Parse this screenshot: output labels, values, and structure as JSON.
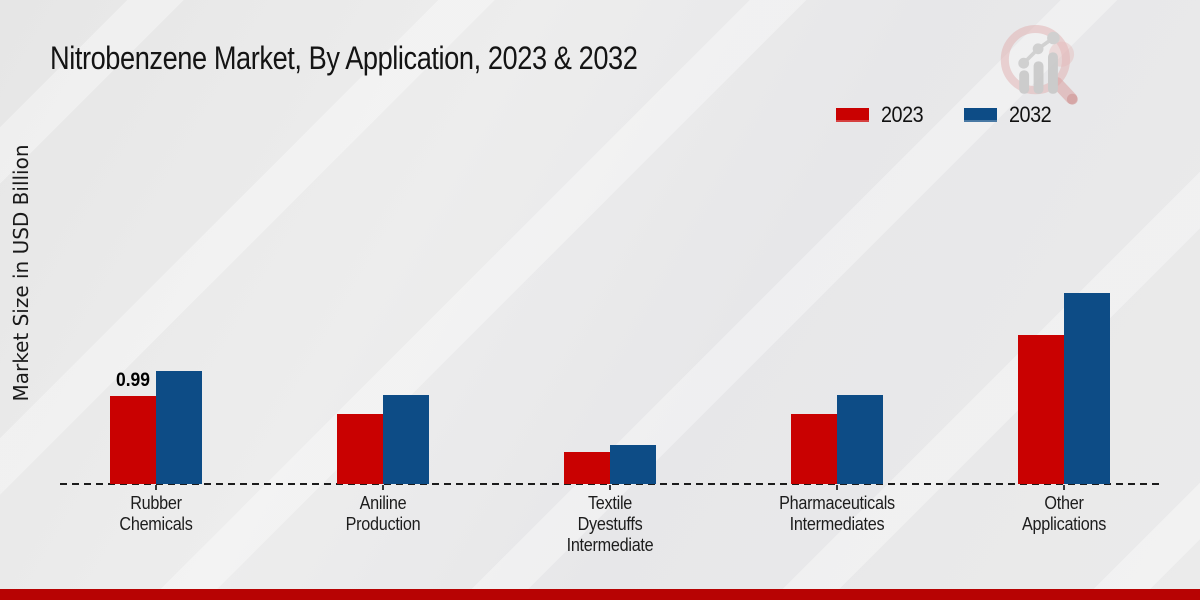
{
  "colors": {
    "background": "#e9e9e9",
    "axis": "#1c1c1c",
    "footer_bar": "#b70303",
    "watermark_pink": "#dfa9a9",
    "watermark_gray": "#c6c6c6"
  },
  "icons": {
    "watermark": "magnifier-bar-chart-logo-icon"
  },
  "chart_data": {
    "type": "bar",
    "title": "Nitrobenzene Market, By Application, 2023 & 2032",
    "xlabel": "",
    "ylabel": "Market Size in USD Billion",
    "categories": [
      "Rubber Chemicals",
      "Aniline Production",
      "Textile Dyestuffs Intermediate",
      "Pharmaceuticals Intermediates",
      "Other Applications"
    ],
    "series": [
      {
        "name": "2023",
        "color": "#c90101",
        "values": [
          0.99,
          0.79,
          0.36,
          0.79,
          1.67
        ]
      },
      {
        "name": "2032",
        "color": "#0d4c86",
        "values": [
          1.27,
          1.0,
          0.44,
          1.0,
          2.15
        ]
      }
    ],
    "annotations": [
      {
        "series": "2023",
        "category": "Rubber Chemicals",
        "text": "0.99"
      }
    ],
    "ylim": [
      0,
      2.4
    ],
    "grid": false,
    "y_axis_visible": false,
    "baseline_style": "dashed",
    "legend_position": "top-right",
    "legend_labels": [
      "2023",
      "2032"
    ]
  }
}
